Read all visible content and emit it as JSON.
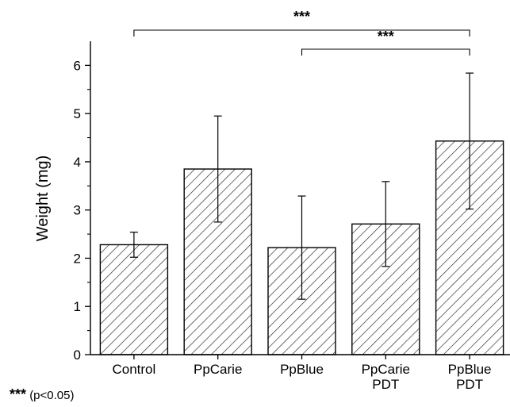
{
  "chart_data": {
    "type": "bar",
    "categories": [
      [
        "Control"
      ],
      [
        "PpCarie"
      ],
      [
        "PpBlue"
      ],
      [
        "PpCarie",
        "PDT"
      ],
      [
        "PpBlue",
        "PDT"
      ]
    ],
    "values": [
      2.28,
      3.85,
      2.22,
      2.71,
      4.43
    ],
    "errors": [
      0.26,
      1.1,
      1.07,
      0.88,
      1.41
    ],
    "ylabel": "Weight (mg)",
    "xlabel": "",
    "ylim": [
      0,
      6.5
    ],
    "yticks": [
      0,
      1,
      2,
      3,
      4,
      5,
      6
    ],
    "bar_fill": "hatched",
    "significance": [
      {
        "from": 0,
        "to": 4,
        "label": "***"
      },
      {
        "from": 2,
        "to": 4,
        "label": "***"
      }
    ]
  },
  "footnote": {
    "stars": "***",
    "text": "(p<0.05)"
  }
}
